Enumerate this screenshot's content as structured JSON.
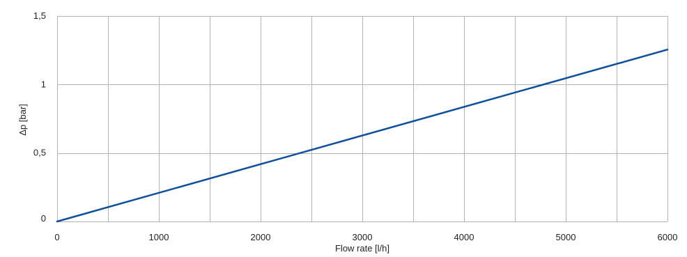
{
  "chart_data": {
    "type": "line",
    "title": "",
    "xlabel": "Flow rate [l/h]",
    "ylabel": "Δp [bar]",
    "xlim": [
      0,
      6000
    ],
    "ylim": [
      0,
      1.5
    ],
    "x_ticks": [
      0,
      500,
      1000,
      1500,
      2000,
      2500,
      3000,
      3500,
      4000,
      4500,
      5000,
      5500,
      6000
    ],
    "x_tick_labels": [
      "0",
      "",
      "1000",
      "",
      "2000",
      "",
      "3000",
      "",
      "4000",
      "",
      "5000",
      "",
      "6000"
    ],
    "y_ticks": [
      0,
      0.5,
      1,
      1.5
    ],
    "y_tick_labels": [
      "0",
      "0,5",
      "1",
      "1,5"
    ],
    "grid": true,
    "legend": "none",
    "series": [
      {
        "color": "#0d4f9c",
        "x": [
          0,
          6000
        ],
        "y": [
          0,
          1.255
        ]
      }
    ]
  },
  "colors": {
    "grid": "#b3b3b3",
    "line": "#0d4f9c",
    "text": "#222222"
  }
}
